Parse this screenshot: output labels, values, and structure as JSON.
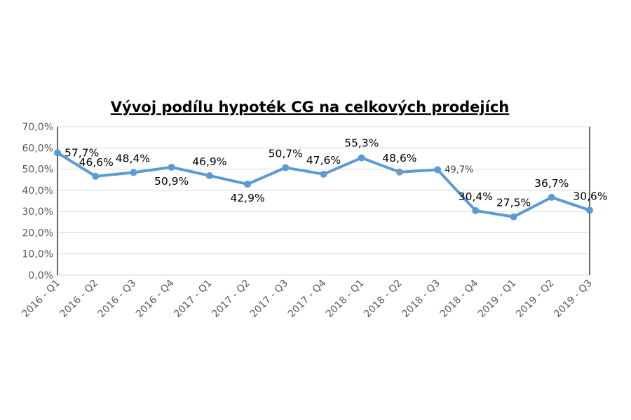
{
  "chart_data": {
    "type": "line",
    "title": "Vývoj podílu hypoték CG na celkových prodejích",
    "xlabel": "",
    "ylabel": "",
    "categories": [
      "2016 - Q1",
      "2016 - Q2",
      "2016 - Q3",
      "2016 - Q4",
      "2017 - Q1",
      "2017 - Q2",
      "2017 - Q3",
      "2017 - Q4",
      "2018 - Q1",
      "2018 - Q2",
      "2018 - Q3",
      "2018 - Q4",
      "2019 - Q1",
      "2019 - Q2",
      "2019 - Q3"
    ],
    "values": [
      57.7,
      46.6,
      48.4,
      50.9,
      46.9,
      42.9,
      50.7,
      47.6,
      55.3,
      48.6,
      49.7,
      30.4,
      27.5,
      36.7,
      30.6
    ],
    "data_labels": [
      "57,7%",
      "46,6%",
      "48,4%",
      "50,9%",
      "46,9%",
      "42,9%",
      "50,7%",
      "47,6%",
      "55,3%",
      "48,6%",
      "49,7%",
      "30,4%",
      "27,5%",
      "36,7%",
      "30,6%"
    ],
    "yticks": [
      "0,0%",
      "10,0%",
      "20,0%",
      "30,0%",
      "40,0%",
      "50,0%",
      "60,0%",
      "70,0%"
    ],
    "ylim": [
      0,
      70
    ],
    "grid": true,
    "legend": "none",
    "line_color": "#5b9bd5",
    "highlight_marker_color": "#8497b0"
  }
}
